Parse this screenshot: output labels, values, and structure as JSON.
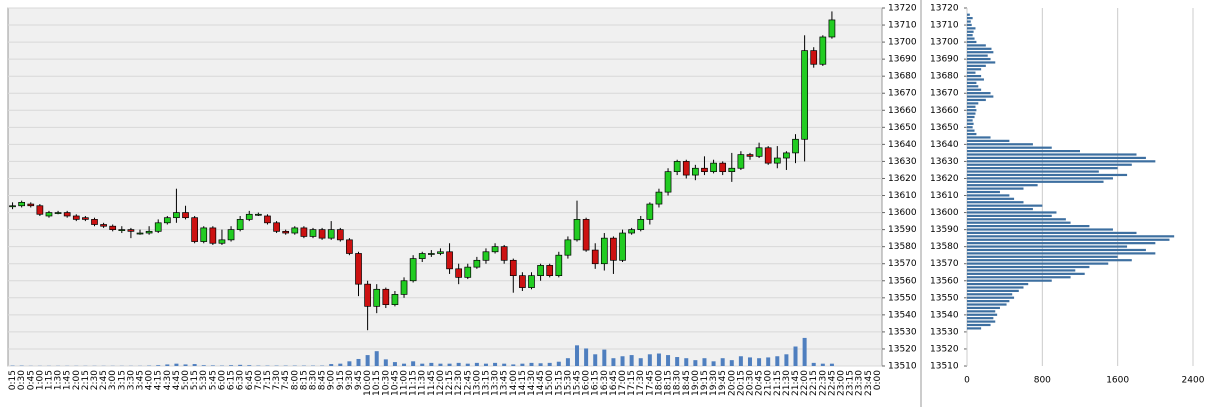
{
  "chart_data": [
    {
      "type": "candlestick",
      "categories": [
        "0:15",
        "0:30",
        "0:45",
        "1:00",
        "1:15",
        "1:30",
        "1:45",
        "2:00",
        "2:15",
        "2:30",
        "2:45",
        "3:00",
        "3:15",
        "3:30",
        "3:45",
        "4:00",
        "4:15",
        "4:30",
        "4:45",
        "5:00",
        "5:15",
        "5:30",
        "5:45",
        "6:00",
        "6:15",
        "6:30",
        "6:45",
        "7:00",
        "7:15",
        "7:30",
        "7:45",
        "8:00",
        "8:15",
        "8:30",
        "8:45",
        "9:00",
        "9:15",
        "9:30",
        "9:45",
        "10:00",
        "10:15",
        "10:30",
        "10:45",
        "11:00",
        "11:15",
        "11:30",
        "11:45",
        "12:00",
        "12:15",
        "12:30",
        "12:45",
        "13:00",
        "13:15",
        "13:30",
        "13:45",
        "14:00",
        "14:15",
        "14:30",
        "14:45",
        "15:00",
        "15:15",
        "15:30",
        "15:45",
        "16:00",
        "16:15",
        "16:30",
        "16:45",
        "17:00",
        "17:15",
        "17:30",
        "17:45",
        "18:00",
        "18:15",
        "18:30",
        "18:45",
        "19:00",
        "19:15",
        "19:30",
        "19:45",
        "20:00",
        "20:15",
        "20:30",
        "20:45",
        "21:00",
        "21:15",
        "21:30",
        "21:45",
        "22:00",
        "22:15",
        "22:30",
        "22:45",
        "23:00",
        "23:15",
        "23:30",
        "23:45",
        "0:00"
      ],
      "candles": [
        [
          13604,
          13606,
          13602,
          13604
        ],
        [
          13604,
          13607,
          13603,
          13606
        ],
        [
          13605,
          13606,
          13603,
          13604
        ],
        [
          13604,
          13605,
          13598,
          13599
        ],
        [
          13598,
          13601,
          13597,
          13600
        ],
        [
          13600,
          13601,
          13599,
          13600
        ],
        [
          13600,
          13601,
          13597,
          13598
        ],
        [
          13598,
          13599,
          13595,
          13596
        ],
        [
          13597,
          13598,
          13595,
          13596
        ],
        [
          13596,
          13597,
          13592,
          13593
        ],
        [
          13593,
          13594,
          13591,
          13592
        ],
        [
          13592,
          13593,
          13589,
          13590
        ],
        [
          13590,
          13592,
          13588,
          13590
        ],
        [
          13590,
          13591,
          13585,
          13589
        ],
        [
          13588,
          13590,
          13587,
          13588
        ],
        [
          13588,
          13592,
          13587,
          13589
        ],
        [
          13589,
          13596,
          13588,
          13594
        ],
        [
          13594,
          13598,
          13593,
          13597
        ],
        [
          13597,
          13614,
          13594,
          13600
        ],
        [
          13600,
          13604,
          13596,
          13597
        ],
        [
          13597,
          13598,
          13582,
          13583
        ],
        [
          13583,
          13592,
          13582,
          13591
        ],
        [
          13591,
          13592,
          13581,
          13582
        ],
        [
          13582,
          13590,
          13581,
          13584
        ],
        [
          13584,
          13592,
          13583,
          13590
        ],
        [
          13590,
          13598,
          13589,
          13596
        ],
        [
          13596,
          13601,
          13595,
          13599
        ],
        [
          13599,
          13600,
          13598,
          13599
        ],
        [
          13598,
          13599,
          13593,
          13594
        ],
        [
          13594,
          13595,
          13588,
          13589
        ],
        [
          13589,
          13590,
          13587,
          13588
        ],
        [
          13588,
          13592,
          13587,
          13591
        ],
        [
          13591,
          13592,
          13585,
          13586
        ],
        [
          13586,
          13591,
          13585,
          13590
        ],
        [
          13590,
          13591,
          13584,
          13585
        ],
        [
          13585,
          13595,
          13584,
          13590
        ],
        [
          13590,
          13591,
          13583,
          13584
        ],
        [
          13584,
          13585,
          13575,
          13576
        ],
        [
          13576,
          13577,
          13551,
          13558
        ],
        [
          13558,
          13560,
          13531,
          13545
        ],
        [
          13545,
          13558,
          13541,
          13555
        ],
        [
          13555,
          13556,
          13544,
          13546
        ],
        [
          13546,
          13554,
          13545,
          13552
        ],
        [
          13552,
          13562,
          13550,
          13560
        ],
        [
          13560,
          13575,
          13559,
          13573
        ],
        [
          13573,
          13577,
          13571,
          13576
        ],
        [
          13576,
          13578,
          13574,
          13576
        ],
        [
          13576,
          13579,
          13575,
          13577
        ],
        [
          13577,
          13582,
          13564,
          13567
        ],
        [
          13567,
          13570,
          13558,
          13562
        ],
        [
          13562,
          13570,
          13561,
          13568
        ],
        [
          13568,
          13574,
          13567,
          13572
        ],
        [
          13572,
          13579,
          13570,
          13577
        ],
        [
          13577,
          13582,
          13576,
          13580
        ],
        [
          13580,
          13581,
          13570,
          13572
        ],
        [
          13572,
          13573,
          13553,
          13563
        ],
        [
          13563,
          13565,
          13554,
          13556
        ],
        [
          13556,
          13565,
          13555,
          13563
        ],
        [
          13563,
          13570,
          13560,
          13569
        ],
        [
          13569,
          13570,
          13562,
          13563
        ],
        [
          13563,
          13577,
          13562,
          13575
        ],
        [
          13575,
          13586,
          13573,
          13584
        ],
        [
          13584,
          13607,
          13583,
          13596
        ],
        [
          13596,
          13597,
          13577,
          13578
        ],
        [
          13578,
          13582,
          13567,
          13570
        ],
        [
          13570,
          13588,
          13566,
          13585
        ],
        [
          13585,
          13586,
          13564,
          13572
        ],
        [
          13572,
          13590,
          13571,
          13588
        ],
        [
          13588,
          13591,
          13587,
          13590
        ],
        [
          13590,
          13598,
          13589,
          13596
        ],
        [
          13596,
          13606,
          13593,
          13605
        ],
        [
          13605,
          13614,
          13603,
          13612
        ],
        [
          13612,
          13626,
          13610,
          13624
        ],
        [
          13624,
          13631,
          13622,
          13630
        ],
        [
          13630,
          13631,
          13620,
          13622
        ],
        [
          13622,
          13628,
          13619,
          13626
        ],
        [
          13626,
          13633,
          13622,
          13624
        ],
        [
          13624,
          13631,
          13623,
          13629
        ],
        [
          13629,
          13630,
          13622,
          13624
        ],
        [
          13624,
          13635,
          13618,
          13626
        ],
        [
          13626,
          13636,
          13625,
          13634
        ],
        [
          13634,
          13635,
          13631,
          13633
        ],
        [
          13633,
          13641,
          13632,
          13638
        ],
        [
          13638,
          13639,
          13628,
          13629
        ],
        [
          13629,
          13639,
          13626,
          13632
        ],
        [
          13632,
          13636,
          13625,
          13635
        ],
        [
          13635,
          13646,
          13629,
          13643
        ],
        [
          13643,
          13704,
          13630,
          13695
        ],
        [
          13695,
          13697,
          13685,
          13687
        ],
        [
          13687,
          13704,
          13686,
          13703
        ],
        [
          13703,
          13718,
          13702,
          13713
        ],
        null,
        null,
        null,
        null,
        null
      ],
      "volume": [
        10,
        10,
        5,
        5,
        5,
        5,
        5,
        5,
        5,
        5,
        5,
        5,
        5,
        5,
        5,
        10,
        20,
        40,
        60,
        40,
        50,
        20,
        15,
        10,
        20,
        30,
        20,
        10,
        10,
        10,
        10,
        10,
        10,
        10,
        10,
        50,
        60,
        120,
        180,
        280,
        380,
        170,
        100,
        60,
        120,
        60,
        80,
        60,
        60,
        80,
        60,
        80,
        60,
        80,
        60,
        40,
        60,
        80,
        70,
        80,
        110,
        200,
        530,
        450,
        300,
        420,
        200,
        250,
        280,
        200,
        300,
        320,
        280,
        230,
        200,
        150,
        200,
        120,
        200,
        150,
        250,
        220,
        200,
        220,
        250,
        300,
        500,
        720,
        80,
        60,
        60,
        null,
        null,
        null,
        null,
        null
      ],
      "volume_ylim": [
        0,
        1000
      ],
      "up_color": "#22cc22",
      "down_color": "#cc1111",
      "volume_color": "#4f7fbf",
      "ylim": [
        13510,
        13720
      ],
      "yticks": [
        13510,
        13520,
        13530,
        13540,
        13550,
        13560,
        13570,
        13580,
        13590,
        13600,
        13610,
        13620,
        13630,
        13640,
        13650,
        13660,
        13670,
        13680,
        13690,
        13700,
        13710,
        13720
      ],
      "grid": true
    },
    {
      "type": "hbar",
      "prices": [
        13532,
        13534,
        13536,
        13538,
        13540,
        13542,
        13544,
        13546,
        13548,
        13550,
        13552,
        13554,
        13556,
        13558,
        13560,
        13562,
        13564,
        13566,
        13568,
        13570,
        13572,
        13574,
        13576,
        13578,
        13580,
        13582,
        13584,
        13586,
        13588,
        13590,
        13592,
        13594,
        13596,
        13598,
        13600,
        13602,
        13604,
        13606,
        13608,
        13610,
        13612,
        13614,
        13616,
        13618,
        13620,
        13622,
        13624,
        13626,
        13628,
        13630,
        13632,
        13634,
        13636,
        13638,
        13640,
        13642,
        13644,
        13646,
        13648,
        13650,
        13652,
        13654,
        13656,
        13658,
        13660,
        13662,
        13664,
        13666,
        13668,
        13670,
        13672,
        13674,
        13676,
        13678,
        13680,
        13682,
        13684,
        13686,
        13688,
        13690,
        13692,
        13694,
        13696,
        13698,
        13700,
        13702,
        13704,
        13706,
        13708,
        13710,
        13712,
        13714,
        13716
      ],
      "values": [
        150,
        250,
        300,
        280,
        320,
        300,
        350,
        420,
        450,
        500,
        480,
        550,
        600,
        650,
        900,
        1100,
        1250,
        1150,
        1300,
        1500,
        1750,
        1600,
        2000,
        1900,
        1700,
        2000,
        2150,
        2200,
        1800,
        1550,
        1300,
        1100,
        1050,
        900,
        950,
        700,
        800,
        600,
        500,
        450,
        350,
        600,
        750,
        1450,
        1550,
        1700,
        1400,
        1600,
        1750,
        2000,
        1900,
        1800,
        1200,
        900,
        700,
        450,
        250,
        100,
        80,
        60,
        70,
        60,
        80,
        90,
        100,
        90,
        120,
        200,
        280,
        250,
        150,
        120,
        100,
        180,
        150,
        90,
        150,
        200,
        300,
        250,
        220,
        280,
        260,
        200,
        100,
        80,
        60,
        70,
        90,
        50,
        40,
        60,
        30
      ],
      "color": "#3d6fa0",
      "xlim": [
        0,
        2400
      ],
      "xticks": [
        0,
        800,
        1600,
        2400
      ],
      "ylim": [
        13510,
        13720
      ],
      "yticks": [
        13510,
        13520,
        13530,
        13540,
        13550,
        13560,
        13570,
        13580,
        13590,
        13600,
        13610,
        13620,
        13630,
        13640,
        13650,
        13660,
        13670,
        13680,
        13690,
        13700,
        13710,
        13720
      ],
      "grid": true
    }
  ]
}
